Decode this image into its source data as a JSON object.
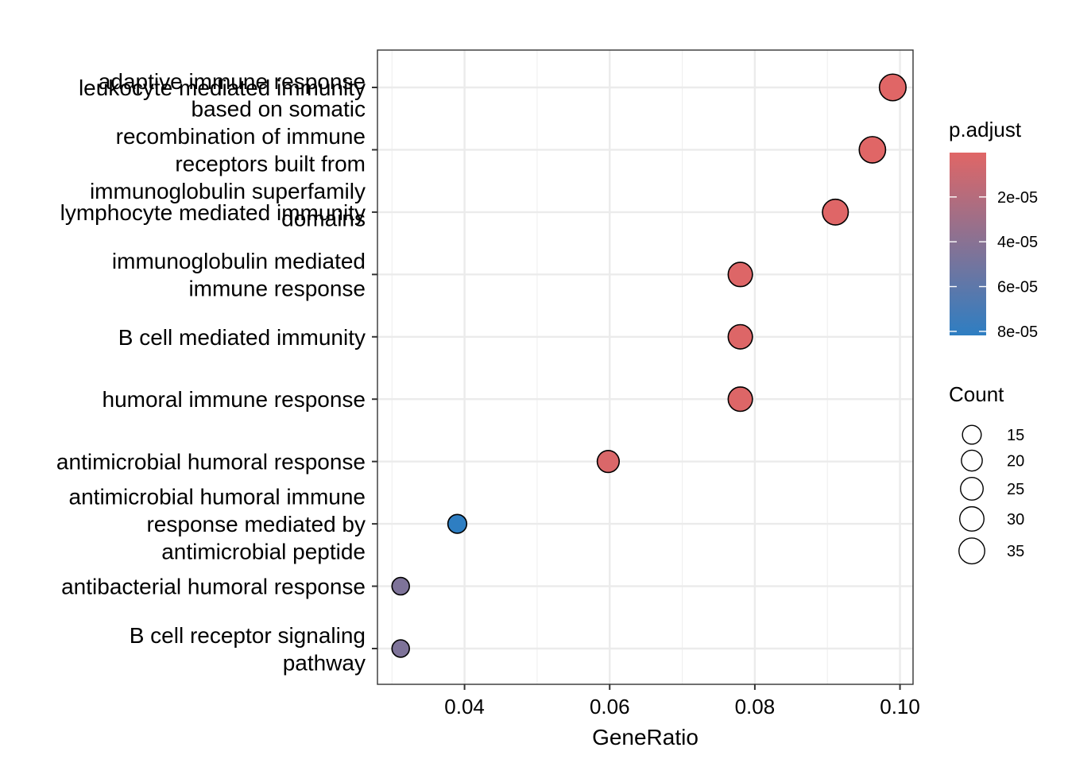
{
  "chart_data": {
    "type": "scatter",
    "subtype": "dotplot",
    "title": "",
    "xlabel": "GeneRatio",
    "ylabel": "",
    "xlim": [
      0.028,
      0.1018
    ],
    "xticks": [
      0.04,
      0.06,
      0.08,
      0.1
    ],
    "xtick_labels": [
      "0.04",
      "0.06",
      "0.08",
      "0.10"
    ],
    "grid": true,
    "categories": [
      [
        "leukocyte mediated immunity"
      ],
      [
        "adaptive immune response",
        "based on somatic",
        "recombination of immune",
        "receptors built from",
        "immunoglobulin superfamily",
        "domains"
      ],
      [
        "lymphocyte mediated immunity"
      ],
      [
        "immunoglobulin mediated",
        "immune response"
      ],
      [
        "B cell mediated immunity"
      ],
      [
        "humoral immune response"
      ],
      [
        "antimicrobial humoral response"
      ],
      [
        "antimicrobial humoral immune",
        "response mediated by",
        "antimicrobial peptide"
      ],
      [
        "antibacterial humoral response"
      ],
      [
        "B cell receptor signaling",
        "pathway"
      ]
    ],
    "gene_ratio": [
      0.099,
      0.0962,
      0.0911,
      0.078,
      0.078,
      0.078,
      0.0598,
      0.039,
      0.0312,
      0.0312
    ],
    "count": [
      38,
      37,
      35,
      30,
      30,
      30,
      23,
      15,
      12,
      12
    ],
    "p_adjust": [
      2e-07,
      4e-07,
      8e-07,
      1.5e-06,
      1.5e-06,
      1.5e-06,
      3e-06,
      8.18e-05,
      4.5e-05,
      4.5e-05
    ],
    "color_legend": {
      "title": "p.adjust",
      "breaks": [
        2e-05,
        4e-05,
        6e-05,
        8e-05
      ],
      "labels": [
        "2e-05",
        "4e-05",
        "6e-05",
        "8e-05"
      ],
      "range": [
        2e-07,
        8.18e-05
      ],
      "low_color": "#E06666",
      "high_color": "#2E7EC2"
    },
    "size_legend": {
      "title": "Count",
      "breaks": [
        15,
        20,
        25,
        30,
        35
      ],
      "labels": [
        "15",
        "20",
        "25",
        "30",
        "35"
      ]
    }
  }
}
